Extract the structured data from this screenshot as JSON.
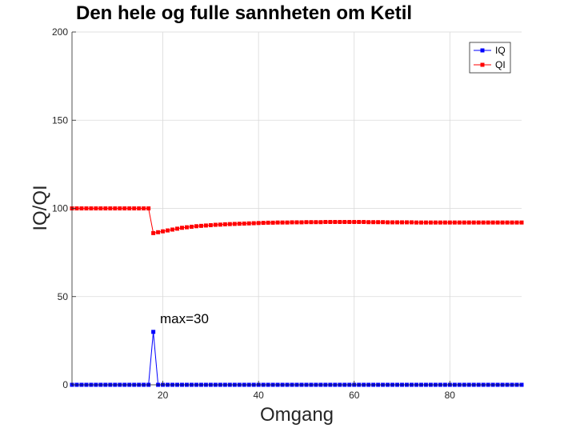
{
  "chart_data": {
    "type": "line",
    "title": "Den hele og fulle sannheten om Ketil",
    "xlabel": "Omgang",
    "ylabel": "IQ/QI",
    "xlim": [
      1,
      95
    ],
    "ylim": [
      0,
      200
    ],
    "xticks": [
      20,
      40,
      60,
      80
    ],
    "yticks": [
      0,
      50,
      100,
      150,
      200
    ],
    "grid": true,
    "legend_position": "top-right",
    "annotation": {
      "text": "max=30",
      "x": 18,
      "y": 30
    },
    "x": [
      1,
      2,
      3,
      4,
      5,
      6,
      7,
      8,
      9,
      10,
      11,
      12,
      13,
      14,
      15,
      16,
      17,
      18,
      19,
      20,
      21,
      22,
      23,
      24,
      25,
      26,
      27,
      28,
      29,
      30,
      31,
      32,
      33,
      34,
      35,
      36,
      37,
      38,
      39,
      40,
      41,
      42,
      43,
      44,
      45,
      46,
      47,
      48,
      49,
      50,
      51,
      52,
      53,
      54,
      55,
      56,
      57,
      58,
      59,
      60,
      61,
      62,
      63,
      64,
      65,
      66,
      67,
      68,
      69,
      70,
      71,
      72,
      73,
      74,
      75,
      76,
      77,
      78,
      79,
      80,
      81,
      82,
      83,
      84,
      85,
      86,
      87,
      88,
      89,
      90,
      91,
      92,
      93,
      94,
      95
    ],
    "series": [
      {
        "name": "IQ",
        "color": "#0000ff",
        "values": [
          0,
          0,
          0,
          0,
          0,
          0,
          0,
          0,
          0,
          0,
          0,
          0,
          0,
          0,
          0,
          0,
          0,
          30,
          0,
          0,
          0,
          0,
          0,
          0,
          0,
          0,
          0,
          0,
          0,
          0,
          0,
          0,
          0,
          0,
          0,
          0,
          0,
          0,
          0,
          0,
          0,
          0,
          0,
          0,
          0,
          0,
          0,
          0,
          0,
          0,
          0,
          0,
          0,
          0,
          0,
          0,
          0,
          0,
          0,
          0,
          0,
          0,
          0,
          0,
          0,
          0,
          0,
          0,
          0,
          0,
          0,
          0,
          0,
          0,
          0,
          0,
          0,
          0,
          0,
          0,
          0,
          0,
          0,
          0,
          0,
          0,
          0,
          0,
          0,
          0,
          0,
          0,
          0,
          0,
          0
        ]
      },
      {
        "name": "QI",
        "color": "#ff0000",
        "values": [
          100,
          100,
          100,
          100,
          100,
          100,
          100,
          100,
          100,
          100,
          100,
          100,
          100,
          100,
          100,
          100,
          100,
          86,
          86.5,
          87,
          87.5,
          88,
          88.5,
          89,
          89.3,
          89.6,
          89.9,
          90.1,
          90.3,
          90.5,
          90.7,
          90.8,
          91,
          91.1,
          91.2,
          91.3,
          91.4,
          91.5,
          91.6,
          91.7,
          91.8,
          91.9,
          91.9,
          92,
          92,
          92,
          92.1,
          92.1,
          92.1,
          92.2,
          92.2,
          92.2,
          92.2,
          92.3,
          92.3,
          92.3,
          92.3,
          92.3,
          92.3,
          92.3,
          92.3,
          92.3,
          92.2,
          92.2,
          92.2,
          92.2,
          92.1,
          92.1,
          92.1,
          92.1,
          92.1,
          92.1,
          92,
          92,
          92,
          92,
          92,
          92,
          92,
          92,
          92,
          92,
          92,
          92,
          92,
          92,
          92,
          92,
          92,
          92,
          92,
          92,
          92,
          92,
          92
        ]
      }
    ]
  }
}
